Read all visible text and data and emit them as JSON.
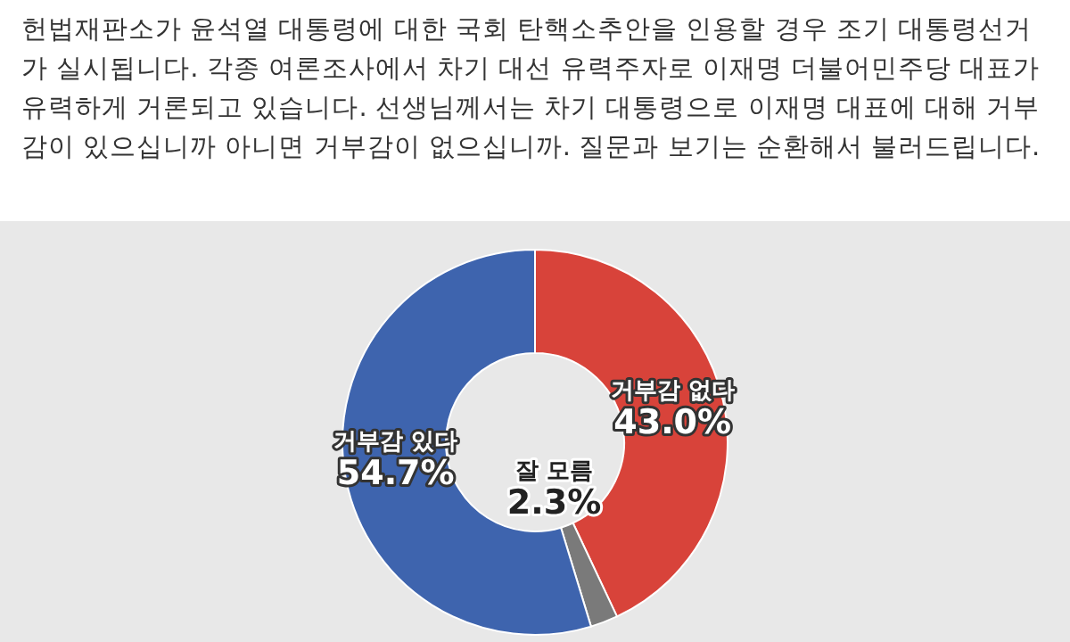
{
  "chart_data": {
    "type": "donut",
    "title": "헌법재판소가 윤석열 대통령에 대한 국회 탄핵소추안을 인용할 경우 조기 대통령선거가 실시됩니다. 각종 여론조사에서 차기 대선 유력주자로 이재명 더불어민주당 대표가 유력하게 거론되고 있습니다. 선생님께서는 차기 대통령으로 이재명 대표에 대해 거부감이 있으십니까 아니면 거부감이 없으십니까. 질문과 보기는 순환해서 불러드립니다.",
    "categories": [
      "거부감 없다",
      "잘 모름",
      "거부감 있다"
    ],
    "values": [
      43.0,
      2.3,
      54.7
    ],
    "colors": [
      "#d8433a",
      "#7a7a7a",
      "#3e64ae"
    ],
    "value_labels": [
      "43.0%",
      "2.3%",
      "54.7%"
    ]
  }
}
